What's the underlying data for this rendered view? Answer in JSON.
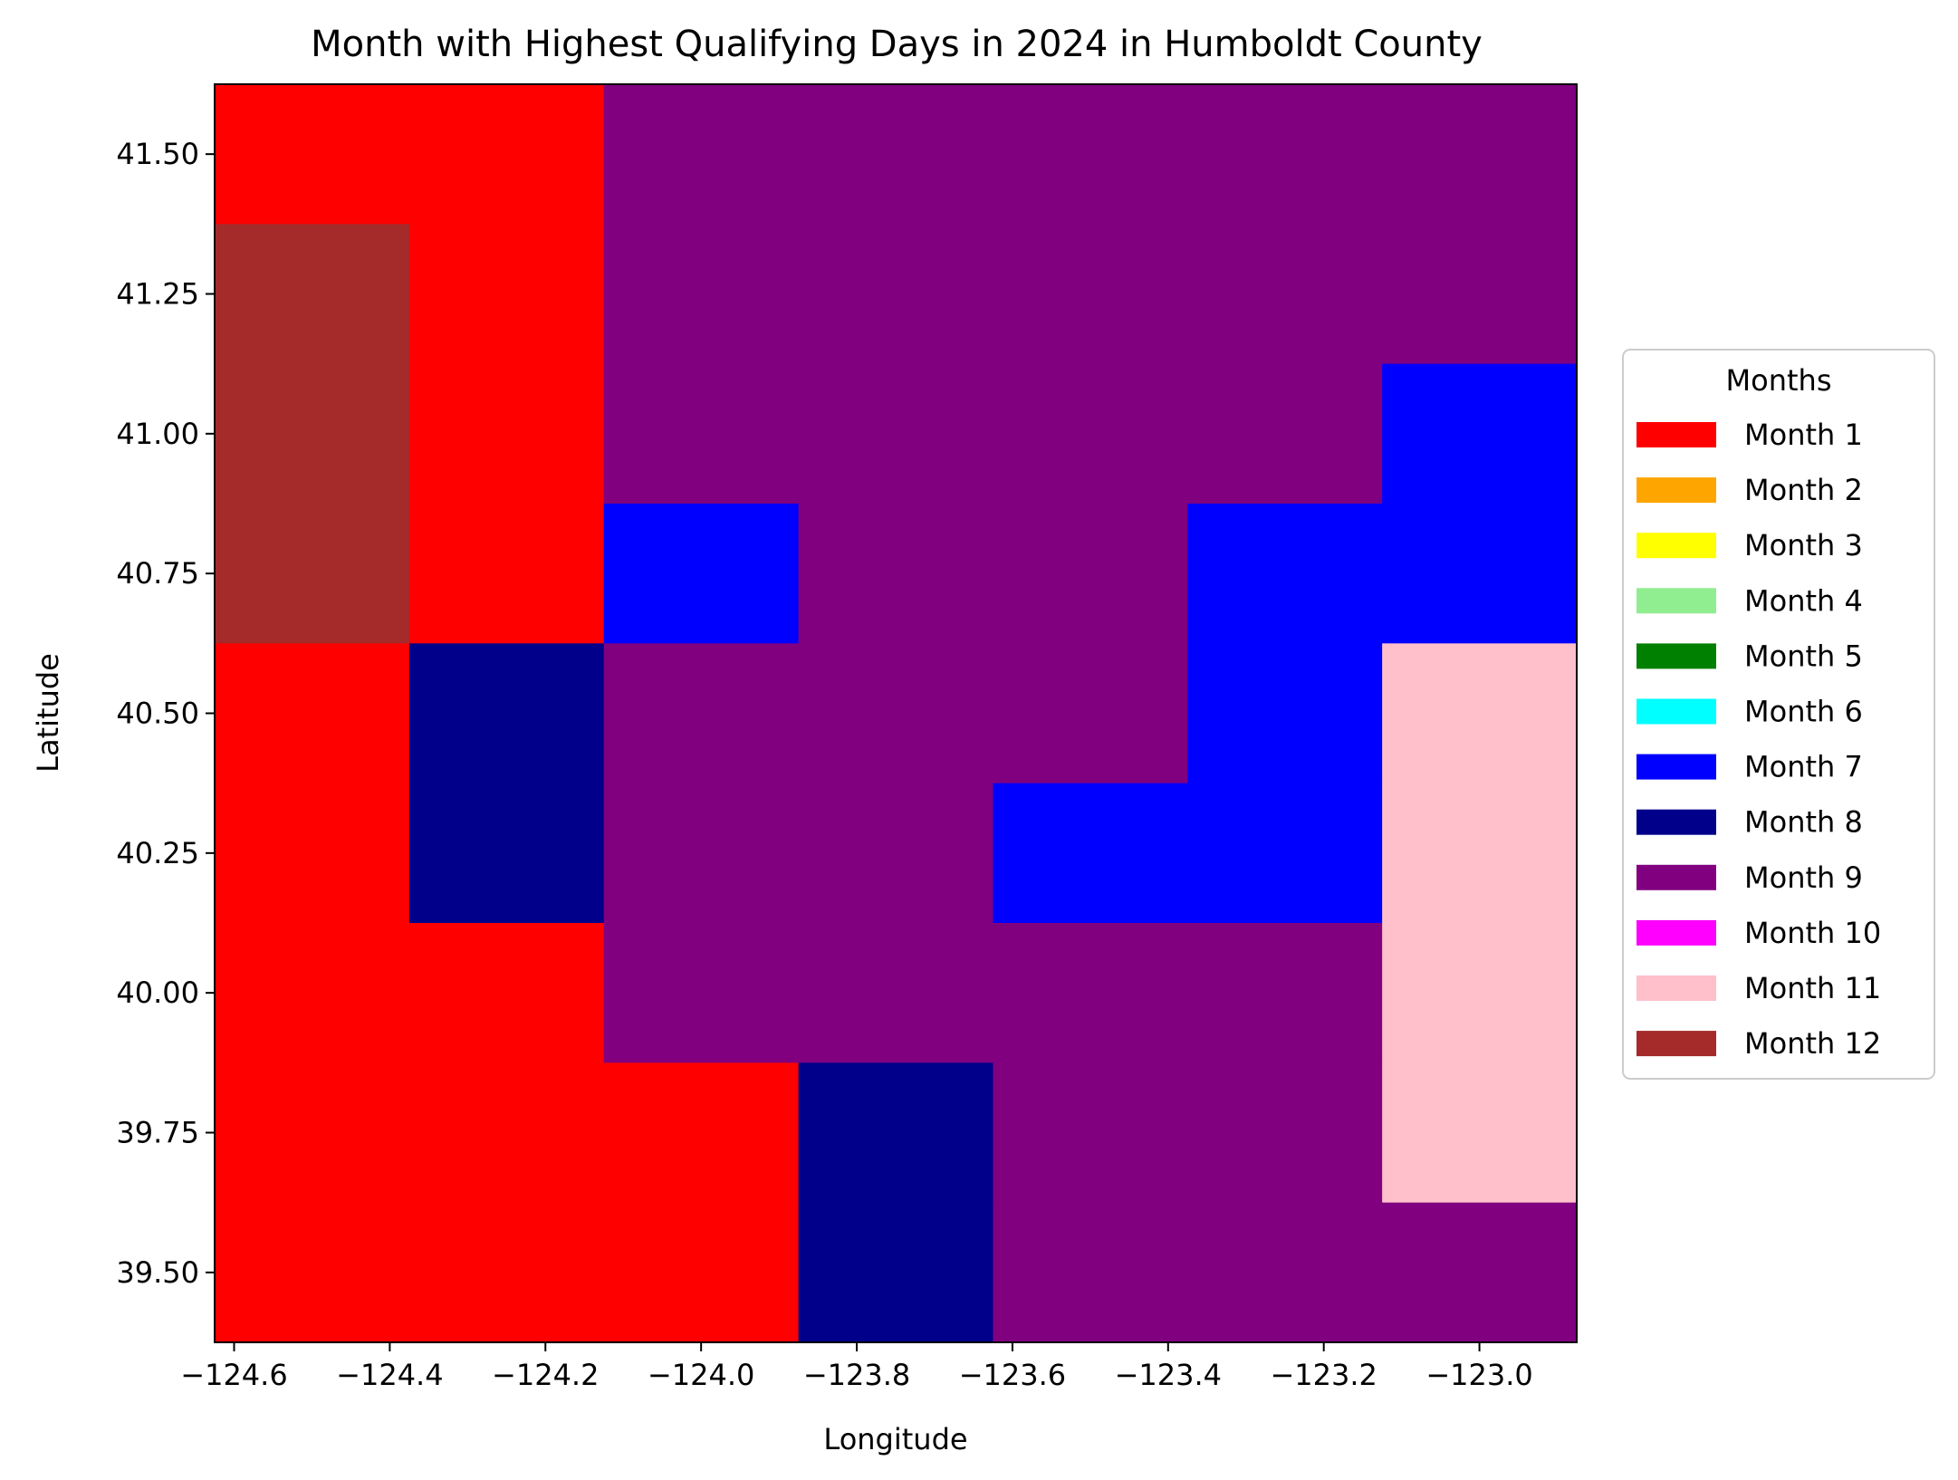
{
  "chart_data": {
    "type": "heatmap",
    "title": "Month with Highest Qualifying Days in 2024 in Humboldt County",
    "xlabel": "Longitude",
    "ylabel": "Latitude",
    "xlim": [
      -124.625,
      -122.875
    ],
    "ylim": [
      39.375,
      41.625
    ],
    "x_ticks": [
      -124.6,
      -124.4,
      -124.2,
      -124.0,
      -123.8,
      -123.6,
      -123.4,
      -123.2,
      -123.0
    ],
    "x_tick_labels": [
      "−124.6",
      "−124.4",
      "−124.2",
      "−124.0",
      "−123.8",
      "−123.6",
      "−123.4",
      "−123.2",
      "−123.0"
    ],
    "y_ticks": [
      39.5,
      39.75,
      40.0,
      40.25,
      40.5,
      40.75,
      41.0,
      41.25,
      41.5
    ],
    "y_tick_labels": [
      "39.50",
      "39.75",
      "40.00",
      "40.25",
      "40.50",
      "40.75",
      "41.00",
      "41.25",
      "41.50"
    ],
    "grid": false,
    "cell_size": 0.25,
    "x_centers": [
      -124.5,
      -124.25,
      -124.0,
      -123.75,
      -123.5,
      -123.25,
      -123.0
    ],
    "y_centers": [
      41.5,
      41.25,
      41.0,
      40.75,
      40.5,
      40.25,
      40.0,
      39.75,
      39.5
    ],
    "month_grid": [
      [
        1,
        1,
        9,
        9,
        9,
        9,
        9
      ],
      [
        12,
        1,
        9,
        9,
        9,
        9,
        9
      ],
      [
        12,
        1,
        9,
        9,
        9,
        9,
        7
      ],
      [
        12,
        1,
        7,
        9,
        9,
        7,
        7
      ],
      [
        1,
        8,
        9,
        9,
        9,
        7,
        11
      ],
      [
        1,
        8,
        9,
        9,
        7,
        7,
        11
      ],
      [
        1,
        1,
        9,
        9,
        9,
        9,
        11
      ],
      [
        1,
        1,
        1,
        8,
        9,
        9,
        11
      ],
      [
        1,
        1,
        1,
        8,
        9,
        9,
        9
      ]
    ],
    "legend": {
      "title": "Months",
      "placement": "right",
      "entries": [
        {
          "label": "Month 1",
          "color": "#ff0000"
        },
        {
          "label": "Month 2",
          "color": "#ffa500"
        },
        {
          "label": "Month 3",
          "color": "#ffff00"
        },
        {
          "label": "Month 4",
          "color": "#90ee90"
        },
        {
          "label": "Month 5",
          "color": "#008000"
        },
        {
          "label": "Month 6",
          "color": "#00ffff"
        },
        {
          "label": "Month 7",
          "color": "#0000ff"
        },
        {
          "label": "Month 8",
          "color": "#00008b"
        },
        {
          "label": "Month 9",
          "color": "#800080"
        },
        {
          "label": "Month 10",
          "color": "#ff00ff"
        },
        {
          "label": "Month 11",
          "color": "#ffc0cb"
        },
        {
          "label": "Month 12",
          "color": "#a52a2a"
        }
      ]
    }
  }
}
